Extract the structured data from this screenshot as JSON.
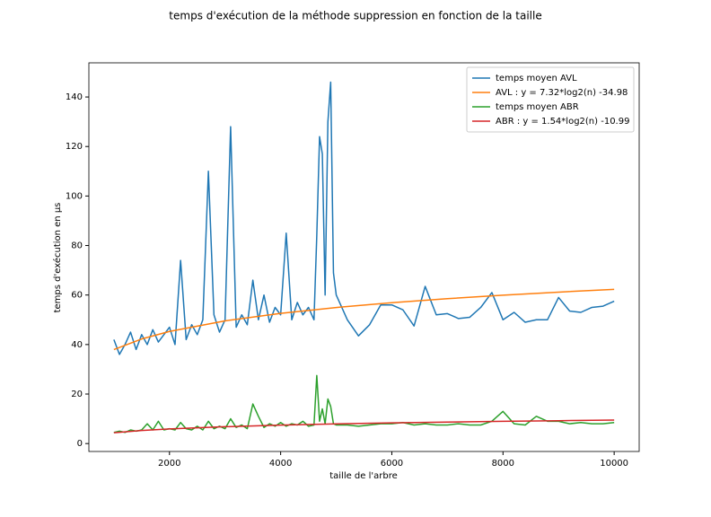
{
  "chart_data": {
    "type": "line",
    "title": "temps d'exécution de la méthode suppression en fonction de la taille",
    "x_label": "taille de l'arbre",
    "y_label": "temps d'exécution en µs",
    "xlim": [
      550,
      10450
    ],
    "ylim": [
      -3.2,
      153.8
    ],
    "xticks": [
      2000,
      4000,
      6000,
      8000,
      10000
    ],
    "yticks": [
      0,
      20,
      40,
      60,
      80,
      100,
      120,
      140
    ],
    "grid": false,
    "legend": "upper right",
    "series": [
      {
        "name": "temps moyen AVL",
        "color": "#1f77b4",
        "x": [
          1000,
          1100,
          1200,
          1300,
          1400,
          1500,
          1600,
          1700,
          1800,
          1900,
          2000,
          2100,
          2200,
          2300,
          2400,
          2500,
          2600,
          2700,
          2800,
          2900,
          3000,
          3100,
          3200,
          3300,
          3400,
          3500,
          3600,
          3700,
          3800,
          3900,
          4000,
          4100,
          4200,
          4300,
          4400,
          4500,
          4600,
          4650,
          4700,
          4750,
          4800,
          4850,
          4900,
          4950,
          5000,
          5200,
          5400,
          5600,
          5800,
          6000,
          6200,
          6400,
          6600,
          6800,
          7000,
          7200,
          7400,
          7600,
          7800,
          8000,
          8200,
          8400,
          8600,
          8800,
          9000,
          9200,
          9400,
          9600,
          9800,
          10000
        ],
        "values": [
          42,
          36,
          40,
          45,
          38,
          44,
          40,
          46,
          41,
          44,
          47,
          40,
          74,
          42,
          48,
          44,
          50,
          110,
          52,
          45,
          50,
          128,
          47,
          52,
          48,
          66,
          50,
          60,
          49,
          55,
          52,
          85,
          50,
          57,
          52,
          55,
          50,
          84,
          124,
          117,
          60,
          130,
          146,
          69,
          60,
          50,
          43.5,
          48,
          56,
          56,
          54,
          47.5,
          63.5,
          52,
          52.5,
          50.5,
          51,
          55,
          61,
          50,
          53,
          49,
          50,
          50,
          59,
          53.5,
          53,
          55,
          55.5,
          57.5
        ]
      },
      {
        "name": "AVL : y = 7.32*log2(n) -34.98",
        "color": "#ff7f0e",
        "x": [
          1000,
          1500,
          2000,
          3000,
          4000,
          5000,
          6000,
          7000,
          8000,
          9000,
          10000
        ],
        "values": [
          37.97,
          42.25,
          45.29,
          49.57,
          52.61,
          54.97,
          56.89,
          58.52,
          59.93,
          61.18,
          62.29
        ]
      },
      {
        "name": "temps moyen ABR",
        "color": "#2ca02c",
        "x": [
          1000,
          1100,
          1200,
          1300,
          1400,
          1500,
          1600,
          1700,
          1800,
          1900,
          2000,
          2100,
          2200,
          2300,
          2400,
          2500,
          2600,
          2700,
          2800,
          2900,
          3000,
          3100,
          3200,
          3300,
          3400,
          3500,
          3600,
          3700,
          3800,
          3900,
          4000,
          4100,
          4200,
          4300,
          4400,
          4500,
          4600,
          4650,
          4700,
          4750,
          4800,
          4850,
          4900,
          4950,
          5000,
          5200,
          5400,
          5600,
          5800,
          6000,
          6200,
          6400,
          6600,
          6800,
          7000,
          7200,
          7400,
          7600,
          7800,
          8000,
          8200,
          8400,
          8600,
          8800,
          9000,
          9200,
          9400,
          9600,
          9800,
          10000
        ],
        "values": [
          4.5,
          5,
          4.5,
          5.5,
          5,
          5.5,
          8,
          5.5,
          9,
          5.5,
          6,
          5.5,
          8.5,
          6,
          5.5,
          7,
          5.5,
          9,
          6,
          7,
          6,
          10,
          6.5,
          7.5,
          6,
          16,
          11,
          6.5,
          8,
          7,
          8.5,
          7,
          8,
          7.5,
          9,
          7,
          7.5,
          27.5,
          9,
          14,
          8,
          18,
          15,
          8,
          7.5,
          7.5,
          7,
          7.5,
          8,
          8,
          8.5,
          7.5,
          8,
          7.5,
          7.5,
          8,
          7.5,
          7.5,
          9,
          13,
          8,
          7.5,
          11,
          9,
          9,
          8,
          8.5,
          8,
          8,
          8.5
        ]
      },
      {
        "name": "ABR : y = 1.54*log2(n) -10.99",
        "color": "#d62728",
        "x": [
          1000,
          1500,
          2000,
          3000,
          4000,
          5000,
          6000,
          7000,
          8000,
          9000,
          10000
        ],
        "values": [
          4.36,
          5.26,
          5.9,
          6.8,
          7.44,
          7.93,
          8.34,
          8.68,
          8.98,
          9.24,
          9.47
        ]
      }
    ]
  }
}
